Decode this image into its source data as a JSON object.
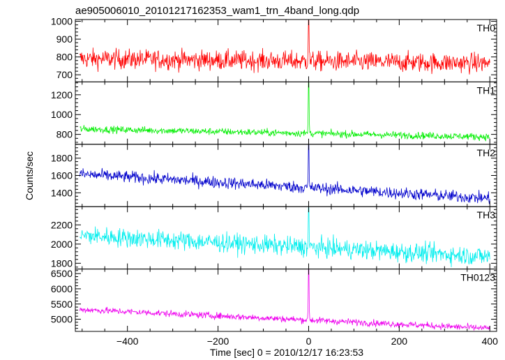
{
  "chart_data": {
    "type": "line",
    "title": "ae905006010_20101217162353_wam1_trn_4band_long.qdp",
    "xlabel": "Time [sec] 0 = 2010/12/17 16:23:53",
    "ylabel": "Counts/sec",
    "xlim": [
      -515,
      415
    ],
    "x_ticks": [
      -400,
      -200,
      0,
      200,
      400
    ],
    "x_tick_labels": [
      "−400",
      "−200",
      "0",
      "200",
      "400"
    ],
    "x_range": [
      -505,
      400
    ],
    "n_points": 905,
    "burst_time": 0,
    "panels": [
      {
        "name": "TH0",
        "color": "#ff0000",
        "ylim": [
          660,
          1010
        ],
        "yticks": [
          700,
          800,
          900,
          1000
        ],
        "baseline_start": 790,
        "baseline_end": 765,
        "noise": 28,
        "peak": 1005
      },
      {
        "name": "TH1",
        "color": "#00ee00",
        "ylim": [
          700,
          1330
        ],
        "yticks": [
          800,
          1000,
          1200
        ],
        "baseline_start": 855,
        "baseline_end": 775,
        "noise": 18,
        "peak": 1320
      },
      {
        "name": "TH2",
        "color": "#0000cc",
        "ylim": [
          1240,
          1960
        ],
        "yticks": [
          1400,
          1600,
          1800
        ],
        "baseline_start": 1615,
        "baseline_end": 1335,
        "noise": 35,
        "peak": 1950
      },
      {
        "name": "TH3",
        "color": "#00eeee",
        "ylim": [
          1740,
          2390
        ],
        "yticks": [
          1800,
          2000,
          2200
        ],
        "baseline_start": 2090,
        "baseline_end": 1870,
        "noise": 50,
        "peak": 2380
      },
      {
        "name": "TH0123",
        "color": "#ee00ee",
        "ylim": [
          4600,
          6650
        ],
        "yticks": [
          5000,
          5500,
          6000,
          6500
        ],
        "baseline_start": 5320,
        "baseline_end": 4700,
        "noise": 55,
        "peak": 6640
      }
    ]
  }
}
